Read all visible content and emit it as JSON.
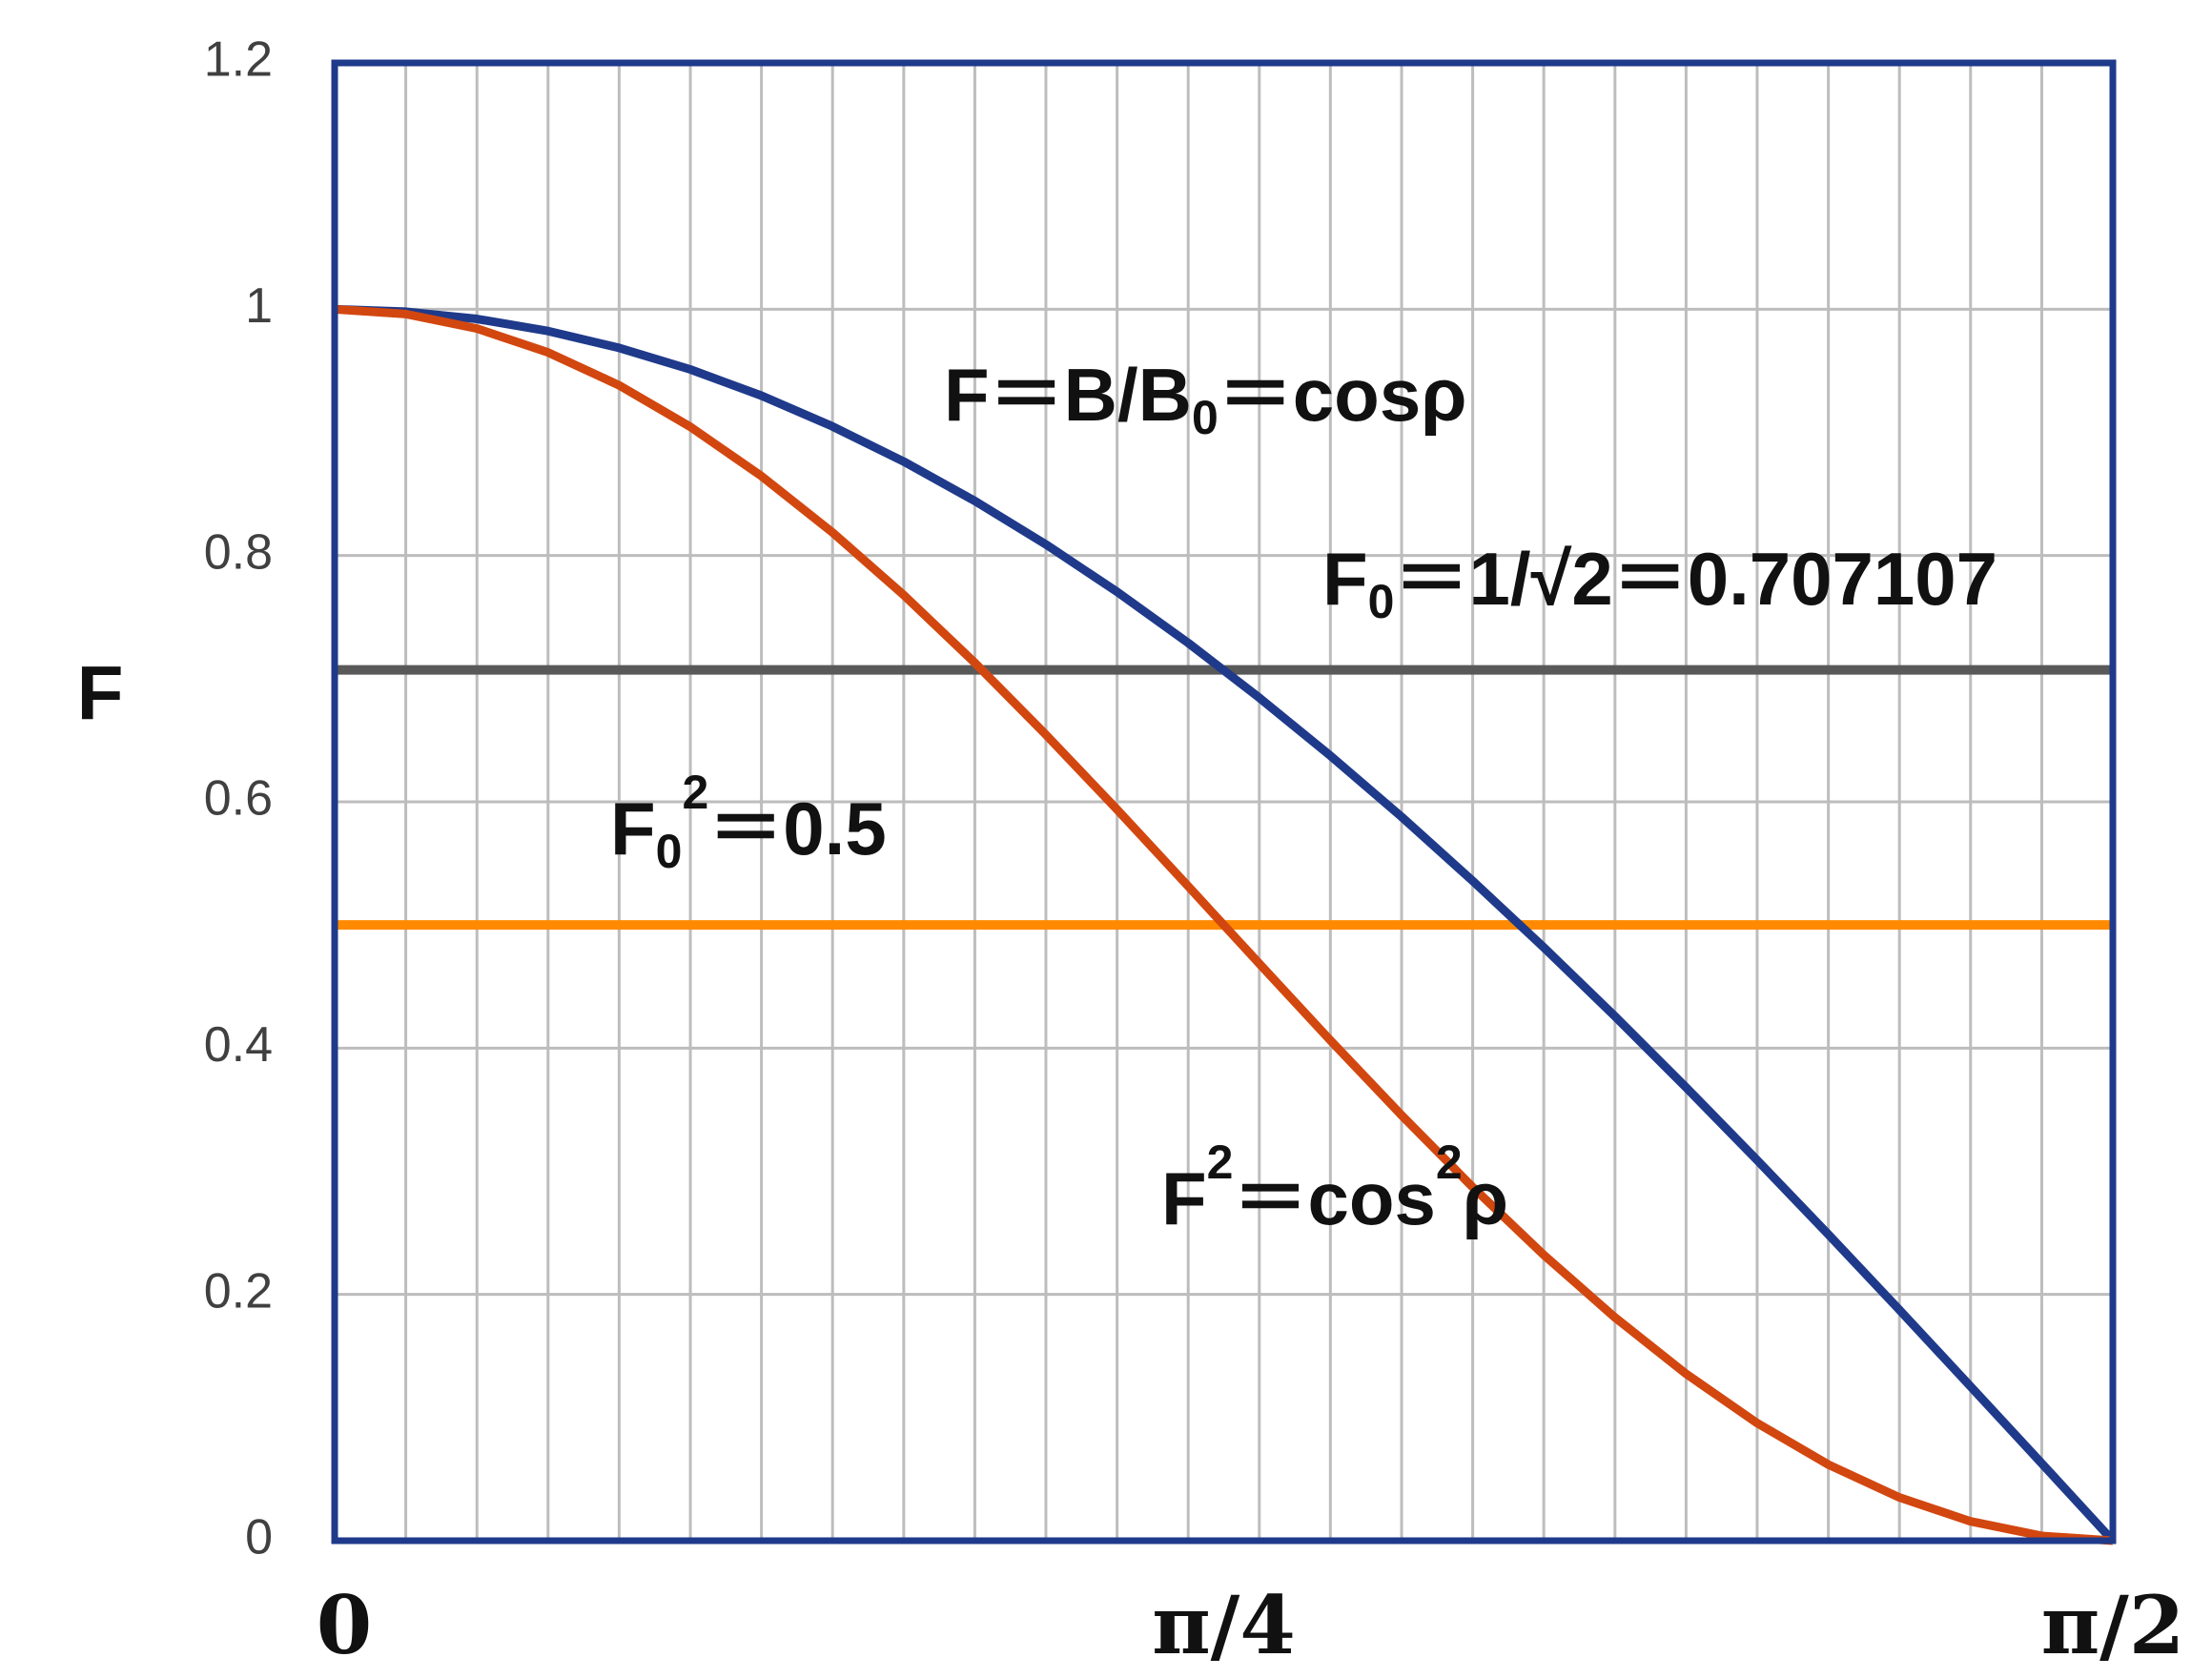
{
  "chart_data": {
    "type": "line",
    "y_label": "F",
    "x": [
      0,
      0.0628,
      0.1257,
      0.1885,
      0.2513,
      0.3142,
      0.377,
      0.4398,
      0.5027,
      0.5655,
      0.6283,
      0.6912,
      0.754,
      0.8168,
      0.8796,
      0.9425,
      1.0053,
      1.0681,
      1.131,
      1.1938,
      1.2566,
      1.3195,
      1.3823,
      1.4451,
      1.508,
      1.5708
    ],
    "series": [
      {
        "color": "#1f3a8a",
        "values": [
          1,
          0.998,
          0.9921,
          0.9823,
          0.9686,
          0.9511,
          0.9298,
          0.9048,
          0.8763,
          0.8443,
          0.809,
          0.7705,
          0.729,
          0.6845,
          0.6374,
          0.5878,
          0.5358,
          0.4818,
          0.4258,
          0.3681,
          0.309,
          0.2487,
          0.1874,
          0.1253,
          0.0628,
          0
        ]
      },
      {
        "color": "#d2470f",
        "values": [
          1,
          0.9961,
          0.9843,
          0.9649,
          0.9382,
          0.9045,
          0.8645,
          0.8187,
          0.7679,
          0.7129,
          0.6545,
          0.5937,
          0.5314,
          0.4686,
          0.4063,
          0.3455,
          0.2871,
          0.2321,
          0.1813,
          0.1355,
          0.0955,
          0.0618,
          0.0351,
          0.0157,
          0.0039,
          0
        ]
      }
    ],
    "hlines": [
      {
        "value": 0.707107,
        "color": "#595959"
      },
      {
        "value": 0.5,
        "color": "#ff8a00"
      }
    ],
    "annotations": [
      {
        "segments": [
          [
            "F＝B/B",
            "base"
          ],
          [
            "0",
            "sub"
          ],
          [
            "＝cosρ",
            "base"
          ]
        ]
      },
      {
        "segments": [
          [
            "F",
            "base"
          ],
          [
            "0",
            "sub"
          ],
          [
            "＝1/√2＝0.707107",
            "base"
          ]
        ]
      },
      {
        "segments": [
          [
            "F",
            "base"
          ],
          [
            "0",
            "sub"
          ],
          [
            "2",
            "sup"
          ],
          [
            "＝0.5",
            "base"
          ]
        ]
      },
      {
        "segments": [
          [
            "F",
            "base"
          ],
          [
            "2",
            "sup"
          ],
          [
            "＝cos",
            "base"
          ],
          [
            "2",
            "sup"
          ],
          [
            "ρ",
            "base"
          ]
        ]
      }
    ],
    "xlim": [
      0,
      1.5708
    ],
    "ylim": [
      0,
      1.2
    ],
    "xticks": [
      0,
      {
        "value": 0.7854,
        "label": "π/4"
      },
      {
        "value": 1.5708,
        "label": "π/2"
      }
    ],
    "yticks": [
      0,
      0.2,
      0.4,
      0.6,
      0.8,
      1,
      1.2
    ],
    "grid": true,
    "frame_color": "#1f3a8a"
  }
}
